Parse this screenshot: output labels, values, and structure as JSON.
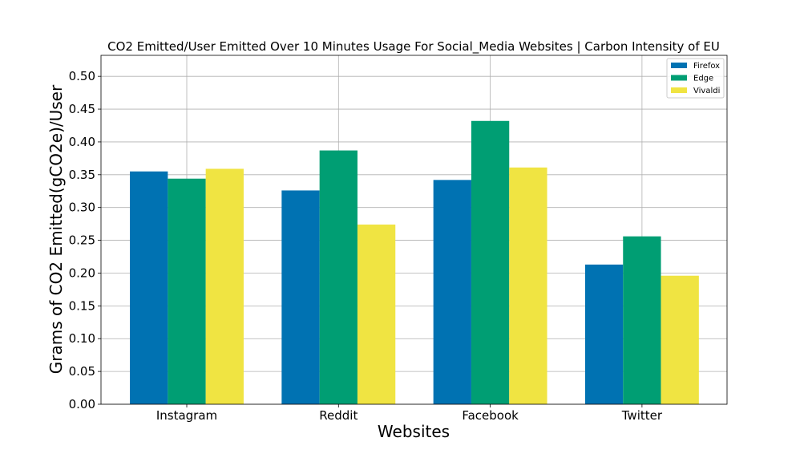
{
  "chart_data": {
    "type": "bar",
    "title": "CO2 Emitted/User Emitted Over 10 Minutes Usage For Social_Media Websites | Carbon Intensity of EU",
    "xlabel": "Websites",
    "ylabel": "Grams of CO2 Emitted(gCO2e)/User",
    "categories": [
      "Instagram",
      "Reddit",
      "Facebook",
      "Twitter"
    ],
    "series": [
      {
        "name": "Firefox",
        "color": "#0072b2",
        "values": [
          0.355,
          0.326,
          0.342,
          0.213
        ]
      },
      {
        "name": "Edge",
        "color": "#009e73",
        "values": [
          0.344,
          0.387,
          0.432,
          0.256
        ]
      },
      {
        "name": "Vivaldi",
        "color": "#f0e442",
        "values": [
          0.359,
          0.274,
          0.361,
          0.196
        ]
      }
    ],
    "ylim": [
      0,
      0.532
    ],
    "yticks": [
      "0.00",
      "0.05",
      "0.10",
      "0.15",
      "0.20",
      "0.25",
      "0.30",
      "0.35",
      "0.40",
      "0.45",
      "0.50"
    ],
    "grid": true,
    "legend_position": "top-right"
  }
}
